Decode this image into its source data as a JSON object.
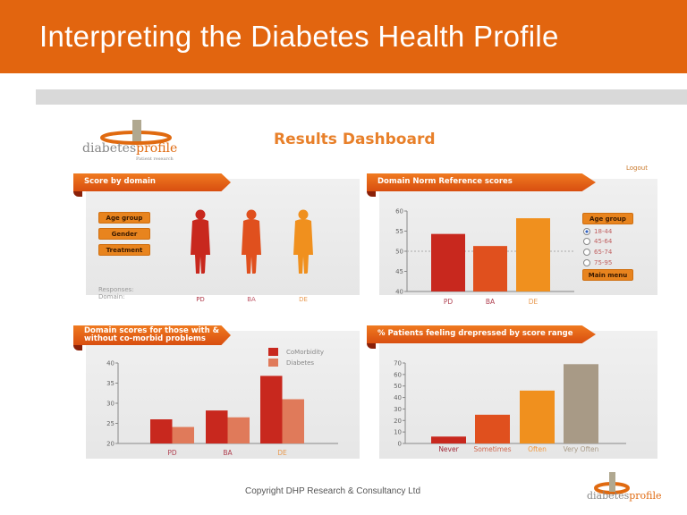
{
  "slide": {
    "title": "Interpreting the Diabetes Health Profile",
    "copyright": "Copyright DHP Research & Consultancy Ltd"
  },
  "logo": {
    "name_a": "diabetes",
    "name_b": "profile",
    "tagline": "Patient research"
  },
  "dashboard": {
    "title": "Results Dashboard",
    "logout": "Logout",
    "score_panel": {
      "title": "Score by domain",
      "buttons": [
        "Age group",
        "Gender",
        "Treatment"
      ],
      "responses_label": "Responses:",
      "domain_label": "Domain:",
      "figures": [
        {
          "label": "PD",
          "color": "#c8281e"
        },
        {
          "label": "BA",
          "color": "#e0501e"
        },
        {
          "label": "DE",
          "color": "#f0901e"
        }
      ]
    },
    "norm_panel": {
      "age_group_label": "Age group",
      "age_options": [
        "18-44",
        "45-64",
        "65-74",
        "75-95"
      ],
      "selected_age": "18-44",
      "main_menu": "Main menu"
    }
  },
  "colors": {
    "header": "#e2650f",
    "PD": "#c8281e",
    "BA": "#e0501e",
    "DE": "#f0901e",
    "grey": "#a89a86",
    "diabetes": "#e07a5a"
  },
  "chart_data": [
    {
      "type": "bar",
      "title": "Domain Norm Reference scores",
      "categories": [
        "PD",
        "BA",
        "DE"
      ],
      "values": [
        54.3,
        51.3,
        58.2
      ],
      "ylim": [
        40,
        60
      ],
      "yticks": [
        40,
        45,
        50,
        55,
        60
      ],
      "reference_line": 50,
      "colors": [
        "#c8281e",
        "#e0501e",
        "#f0901e"
      ]
    },
    {
      "type": "bar",
      "title": "Domain scores for those with & without co-morbid problems",
      "categories": [
        "PD",
        "BA",
        "DE"
      ],
      "series": [
        {
          "name": "CoMorbidity",
          "values": [
            26,
            28.2,
            36.8
          ],
          "color": "#c8281e"
        },
        {
          "name": "Diabetes",
          "values": [
            24.1,
            26.5,
            31
          ],
          "color": "#e07a5a"
        }
      ],
      "ylim": [
        20,
        40
      ],
      "yticks": [
        20,
        25,
        30,
        35,
        40
      ],
      "legend": "top-right"
    },
    {
      "type": "bar",
      "title": "% Patients feeling drepressed by score range",
      "categories": [
        "Never",
        "Sometimes",
        "Often",
        "Very Often"
      ],
      "values": [
        6,
        25,
        46,
        69
      ],
      "ylim": [
        0,
        70
      ],
      "yticks": [
        0,
        10,
        20,
        30,
        40,
        50,
        60,
        70
      ],
      "colors": [
        "#c8281e",
        "#e0501e",
        "#f0901e",
        "#a89a86"
      ]
    }
  ]
}
